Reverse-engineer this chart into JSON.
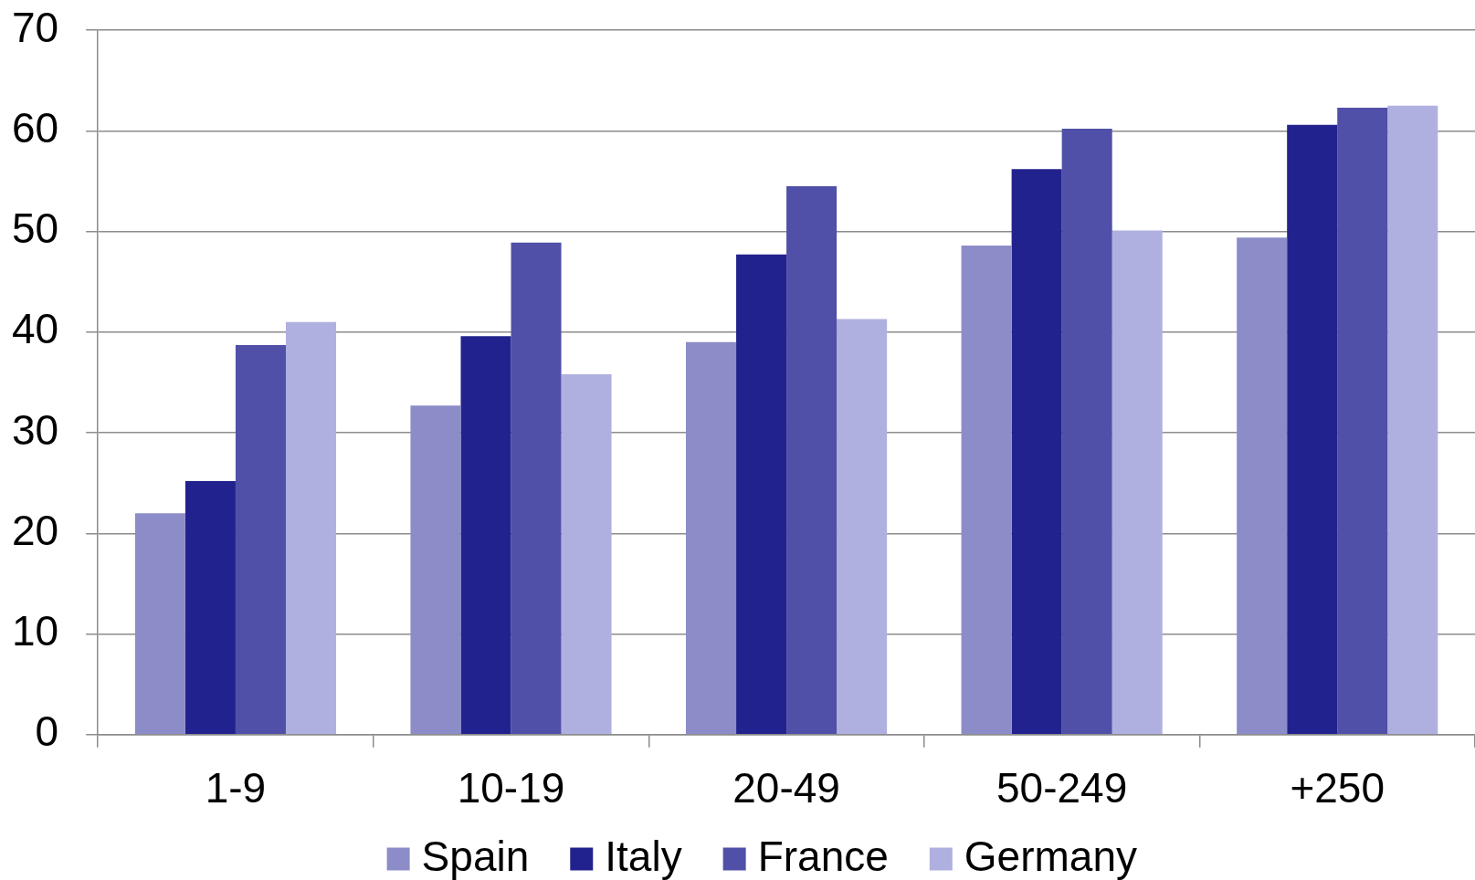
{
  "chart_data": {
    "type": "bar",
    "categories": [
      "1-9",
      "10-19",
      "20-49",
      "50-249",
      "+250"
    ],
    "series": [
      {
        "name": "Spain",
        "color": "#8c8cc8",
        "values": [
          22,
          32.7,
          39,
          48.6,
          49.4
        ]
      },
      {
        "name": "Italy",
        "color": "#22228e",
        "values": [
          25.2,
          39.6,
          47.7,
          56.2,
          60.6
        ]
      },
      {
        "name": "France",
        "color": "#5050a8",
        "values": [
          38.7,
          48.9,
          54.5,
          60.2,
          62.3
        ]
      },
      {
        "name": "Germany",
        "color": "#b0b0e0",
        "values": [
          41,
          35.8,
          41.3,
          50.1,
          62.5
        ]
      }
    ],
    "ylim": [
      0,
      70
    ],
    "yticks": [
      0,
      10,
      20,
      30,
      40,
      50,
      60,
      70
    ],
    "grid": "y",
    "legend": "bottom"
  }
}
